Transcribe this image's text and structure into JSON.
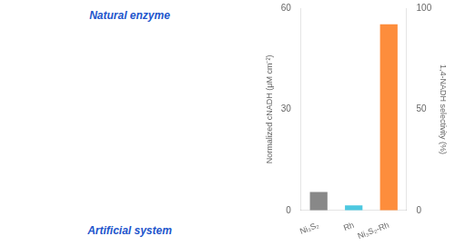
{
  "chart_data": {
    "type": "bar",
    "categories": [
      "Ni₃S₂",
      "Rh",
      "Ni₃S₂-Rh"
    ],
    "series": [
      {
        "values": [
          5.5,
          1.5,
          null
        ],
        "colors": [
          "#888888",
          "#4dc8e0",
          null
        ]
      },
      {
        "values": [
          null,
          null,
          92
        ],
        "axis": "y2",
        "color": "#fd8d3c"
      }
    ],
    "ylim": [
      0,
      60
    ],
    "yticks": [
      0,
      30,
      60
    ],
    "y2lim": [
      0,
      100
    ],
    "y2ticks": [
      0,
      50,
      100
    ],
    "ylabel": "Normalized cNADH (μM cm⁻²)",
    "y2label": "1,4-NADH selectivity (%)",
    "grid": false,
    "annotations": [
      {
        "text": "Natural enzyme",
        "color": "#2255cc"
      },
      {
        "text": "Artificial system",
        "color": "#2255cc"
      }
    ]
  }
}
